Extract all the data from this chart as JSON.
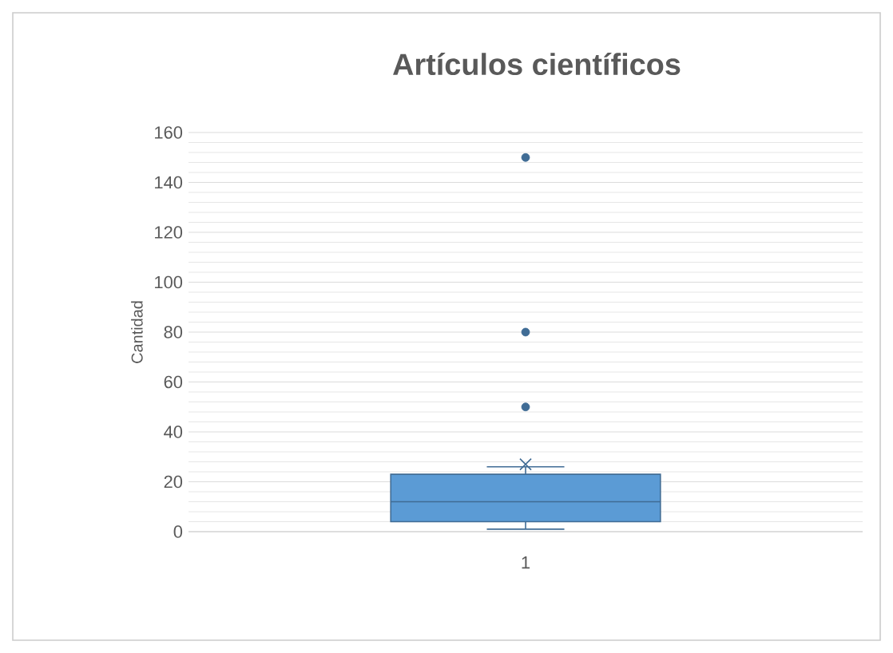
{
  "chart_data": {
    "type": "box",
    "title": "Artículos científicos",
    "ylabel": "Cantidad",
    "categories": [
      "1"
    ],
    "series": [
      {
        "color": "#5b9bd5",
        "boxes": [
          {
            "low": 1,
            "q1": 4,
            "median": 12,
            "q3": 23,
            "high": 26,
            "mean": 27,
            "outliers": [
              150,
              80,
              50
            ]
          }
        ]
      }
    ],
    "ylim": [
      0,
      160
    ],
    "yticks": [
      0,
      20,
      40,
      60,
      80,
      100,
      120,
      140,
      160
    ],
    "grid": "y"
  }
}
